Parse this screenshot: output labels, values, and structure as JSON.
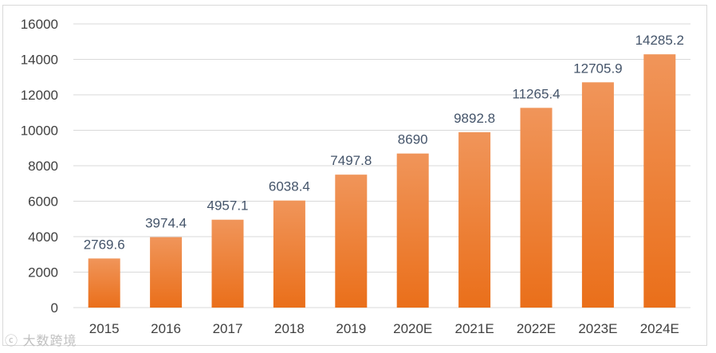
{
  "chart_data": {
    "type": "bar",
    "title": "",
    "xlabel": "",
    "ylabel": "",
    "categories": [
      "2015",
      "2016",
      "2017",
      "2018",
      "2019",
      "2020E",
      "2021E",
      "2022E",
      "2023E",
      "2024E"
    ],
    "values": [
      2769.6,
      3974.4,
      4957.1,
      6038.4,
      7497.8,
      8690,
      9892.8,
      11265.4,
      12705.9,
      14285.2
    ],
    "value_labels": [
      "2769.6",
      "3974.4",
      "4957.1",
      "6038.4",
      "7497.8",
      "8690",
      "9892.8",
      "11265.4",
      "12705.9",
      "14285.2"
    ],
    "ylim": [
      0,
      16000
    ],
    "yticks": [
      0,
      2000,
      4000,
      6000,
      8000,
      10000,
      12000,
      14000,
      16000
    ],
    "ytick_labels": [
      "0",
      "2000",
      "4000",
      "6000",
      "8000",
      "10000",
      "12000",
      "14000",
      "16000"
    ],
    "grid": true,
    "legend": "none",
    "colors": {
      "bar_top": "#f0955a",
      "bar_bottom": "#ea6f1a",
      "grid": "#d9d9d9",
      "label": "#44546a"
    }
  },
  "watermark": {
    "icon": "logo-icon",
    "text": "大数跨境"
  }
}
